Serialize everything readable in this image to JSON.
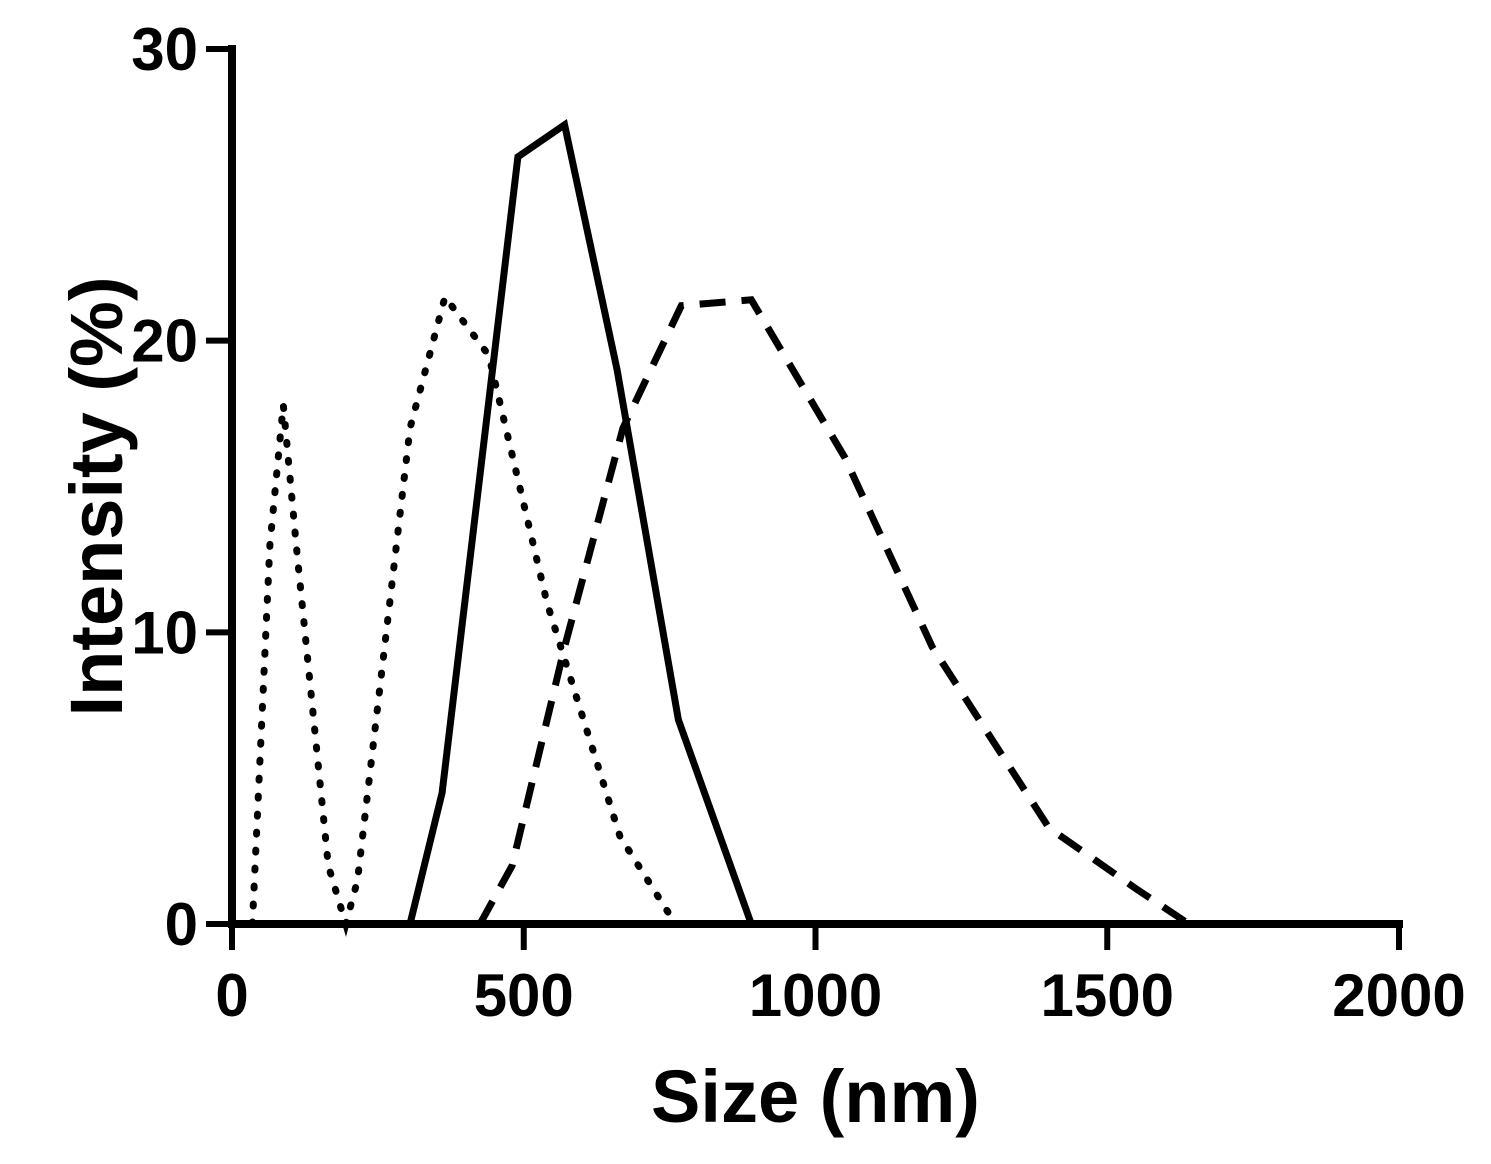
{
  "chart_data": {
    "type": "line",
    "xlabel": "Size (nm)",
    "ylabel": "Intensity (%)",
    "xlim": [
      0,
      2000
    ],
    "ylim": [
      0,
      30
    ],
    "xticks": [
      0,
      500,
      1000,
      1500,
      2000
    ],
    "yticks": [
      0,
      10,
      20,
      30
    ],
    "grid": false,
    "series": [
      {
        "style": "solid",
        "points": [
          [
            305,
            0
          ],
          [
            360,
            4.5
          ],
          [
            490,
            26.3
          ],
          [
            570,
            27.4
          ],
          [
            660,
            19
          ],
          [
            765,
            7
          ],
          [
            890,
            0
          ]
        ]
      },
      {
        "style": "dashed",
        "points": [
          [
            425,
            0
          ],
          [
            480,
            2
          ],
          [
            570,
            9.5
          ],
          [
            670,
            17
          ],
          [
            770,
            21.2
          ],
          [
            890,
            21.4
          ],
          [
            1050,
            16
          ],
          [
            1200,
            9.5
          ],
          [
            1400,
            3.3
          ],
          [
            1550,
            1.2
          ],
          [
            1640,
            0
          ]
        ]
      },
      {
        "style": "dotted",
        "points": [
          [
            35,
            0
          ],
          [
            65,
            13
          ],
          [
            88,
            17.8
          ],
          [
            110,
            13
          ],
          [
            165,
            2
          ],
          [
            195,
            0
          ],
          [
            215,
            1.5
          ],
          [
            305,
            17
          ],
          [
            365,
            21.5
          ],
          [
            440,
            19.5
          ],
          [
            540,
            11
          ],
          [
            665,
            3
          ],
          [
            760,
            0
          ]
        ]
      }
    ]
  }
}
